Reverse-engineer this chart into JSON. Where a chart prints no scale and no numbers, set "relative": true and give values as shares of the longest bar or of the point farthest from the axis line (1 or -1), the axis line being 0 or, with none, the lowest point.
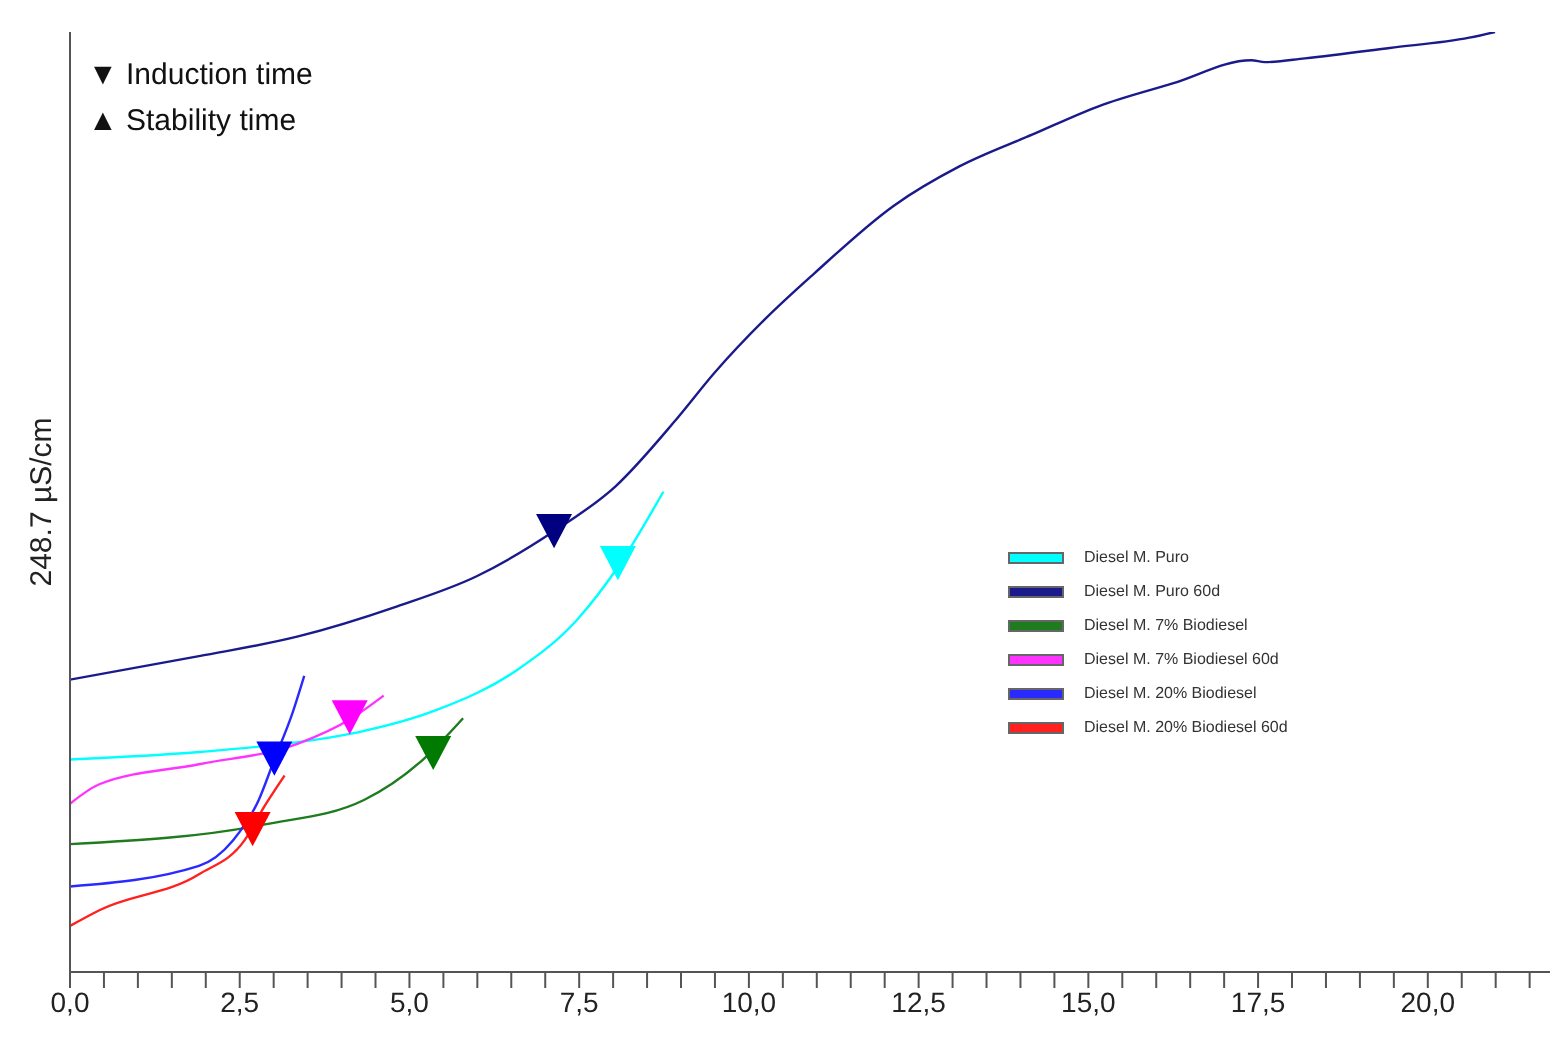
{
  "chart_data": {
    "type": "line",
    "ylabel": "248.7 µS/cm",
    "relative": true,
    "xlim": [
      0,
      21.8
    ],
    "xticks": [
      {
        "value": 0,
        "label": "0,0"
      },
      {
        "value": 0.5,
        "label": null
      },
      {
        "value": 1,
        "label": null
      },
      {
        "value": 1.5,
        "label": null
      },
      {
        "value": 2,
        "label": null
      },
      {
        "value": 2.5,
        "label": "2,5"
      },
      {
        "value": 3,
        "label": null
      },
      {
        "value": 3.5,
        "label": null
      },
      {
        "value": 4,
        "label": null
      },
      {
        "value": 4.5,
        "label": null
      },
      {
        "value": 5,
        "label": "5,0"
      },
      {
        "value": 5.5,
        "label": null
      },
      {
        "value": 6,
        "label": null
      },
      {
        "value": 6.5,
        "label": null
      },
      {
        "value": 7,
        "label": null
      },
      {
        "value": 7.5,
        "label": "7,5"
      },
      {
        "value": 8,
        "label": null
      },
      {
        "value": 8.5,
        "label": null
      },
      {
        "value": 9,
        "label": null
      },
      {
        "value": 9.5,
        "label": null
      },
      {
        "value": 10,
        "label": "10,0"
      },
      {
        "value": 10.5,
        "label": null
      },
      {
        "value": 11,
        "label": null
      },
      {
        "value": 11.5,
        "label": null
      },
      {
        "value": 12,
        "label": null
      },
      {
        "value": 12.5,
        "label": "12,5"
      },
      {
        "value": 13,
        "label": null
      },
      {
        "value": 13.5,
        "label": null
      },
      {
        "value": 14,
        "label": null
      },
      {
        "value": 14.5,
        "label": null
      },
      {
        "value": 15,
        "label": "15,0"
      },
      {
        "value": 15.5,
        "label": null
      },
      {
        "value": 16,
        "label": null
      },
      {
        "value": 16.5,
        "label": null
      },
      {
        "value": 17,
        "label": null
      },
      {
        "value": 17.5,
        "label": "17,5"
      },
      {
        "value": 18,
        "label": null
      },
      {
        "value": 18.5,
        "label": null
      },
      {
        "value": 19,
        "label": null
      },
      {
        "value": 19.5,
        "label": null
      },
      {
        "value": 20,
        "label": "20,0"
      },
      {
        "value": 20.5,
        "label": null
      },
      {
        "value": 21,
        "label": null
      },
      {
        "value": 21.5,
        "label": null
      }
    ],
    "legend": "right",
    "annotations": [
      "▼ Induction time",
      "▲ Stability time"
    ],
    "series": [
      {
        "name": "Diesel M. Puro",
        "color": "#00ffff",
        "x": [
          0,
          1.9,
          3.6,
          4.24,
          5.41,
          6.58,
          7.46,
          8.1,
          8.74
        ],
        "values": [
          0.226,
          0.234,
          0.247,
          0.255,
          0.279,
          0.321,
          0.374,
          0.434,
          0.511
        ]
      },
      {
        "name": "Diesel M. Puro 60d",
        "color": "#1a1a8c",
        "x": [
          0,
          1.9,
          3.36,
          4.82,
          5.99,
          7.11,
          8.04,
          8.92,
          9.5,
          10.23,
          10.96,
          12.13,
          13.1,
          14.18,
          15.15,
          16.23,
          17.4,
          17.6,
          18.19,
          19.44,
          20.61,
          20.99
        ],
        "values": [
          0.311,
          0.336,
          0.357,
          0.389,
          0.421,
          0.468,
          0.517,
          0.587,
          0.638,
          0.694,
          0.743,
          0.815,
          0.857,
          0.891,
          0.921,
          0.945,
          0.97,
          0.968,
          0.972,
          0.983,
          0.994,
          1
        ]
      },
      {
        "name": "Diesel M. 7% Biodiesel",
        "color": "#1e7b1e",
        "x": [
          0,
          2.87,
          4.33,
          5.2,
          5.79
        ],
        "values": [
          0.136,
          0.157,
          0.183,
          0.226,
          0.27
        ]
      },
      {
        "name": "Diesel M. 7% Biodiesel  60d",
        "color": "#ff33ff",
        "x": [
          0,
          0.44,
          1.9,
          3.36,
          4.15,
          4.62
        ],
        "values": [
          0.179,
          0.2,
          0.221,
          0.243,
          0.27,
          0.294
        ]
      },
      {
        "name": "Diesel M. 20% Biodiesel",
        "color": "#2a2aff",
        "x": [
          0,
          1.9,
          2.4,
          2.78,
          3.01,
          3.27,
          3.45
        ],
        "values": [
          0.091,
          0.113,
          0.14,
          0.183,
          0.226,
          0.274,
          0.315
        ]
      },
      {
        "name": "Diesel M. 20% Biodiesel 60d",
        "color": "#ff2020",
        "x": [
          0,
          0.44,
          1.9,
          2.57,
          2.87,
          3.16
        ],
        "values": [
          0.049,
          0.066,
          0.104,
          0.14,
          0.177,
          0.209
        ]
      },
      {
        "type": "scatter",
        "marker": "triangle",
        "x": [
          8.07,
          7.13,
          5.35,
          4.12,
          3.01,
          2.69
        ],
        "values": [
          0.434,
          0.468,
          0.232,
          0.27,
          0.226,
          0.151
        ],
        "colors": [
          "#00ffff",
          "#000080",
          "#007a00",
          "#ff00ff",
          "#0000ff",
          "#ff0000"
        ]
      }
    ]
  }
}
